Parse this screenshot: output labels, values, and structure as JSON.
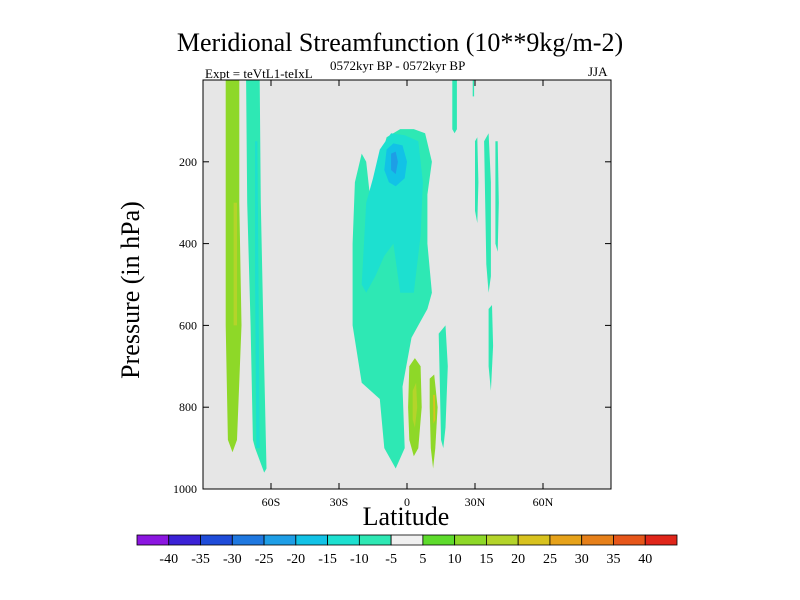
{
  "chart_data": {
    "type": "heatmap",
    "title": "Meridional Streamfunction (10**9kg/m-2)",
    "left_subtitle": "Expt = teVtL1-teIxL",
    "center_subtitle": "0572kyr BP - 0572kyr BP",
    "right_subtitle": "JJA",
    "xlabel": "Latitude",
    "ylabel": "Pressure (in hPa)",
    "x_range": [
      -90,
      90
    ],
    "y_range": [
      0,
      1000
    ],
    "y_reversed": true,
    "x_ticks": [
      {
        "value": -60,
        "label": "60S"
      },
      {
        "value": -30,
        "label": "30S"
      },
      {
        "value": 0,
        "label": "0"
      },
      {
        "value": 30,
        "label": "30N"
      },
      {
        "value": 60,
        "label": "60N"
      }
    ],
    "y_ticks": [
      {
        "value": 200,
        "label": "200"
      },
      {
        "value": 400,
        "label": "400"
      },
      {
        "value": 600,
        "label": "600"
      },
      {
        "value": 800,
        "label": "800"
      },
      {
        "value": 1000,
        "label": "1000"
      }
    ],
    "background_color": "#e6e6e6",
    "colorbar": {
      "levels": [
        "-40",
        "-35",
        "-30",
        "-25",
        "-20",
        "-15",
        "-10",
        "-5",
        "5",
        "10",
        "15",
        "20",
        "25",
        "30",
        "35",
        "40"
      ],
      "colors": [
        "#8b16e0",
        "#3b22d6",
        "#1f4cd9",
        "#1f78e0",
        "#1e9ee6",
        "#12c2e6",
        "#1de0d0",
        "#2ee8b4",
        "#f0f0f0",
        "#5edb2c",
        "#8ed828",
        "#b4d42a",
        "#d8c21e",
        "#e6a21a",
        "#e6801a",
        "#e6561a",
        "#e0261a"
      ]
    },
    "contour_regions": [
      {
        "name": "sh-positive-band",
        "value": 10,
        "points": [
          [
            -80,
            0
          ],
          [
            -74,
            0
          ],
          [
            -74,
            300
          ],
          [
            -73,
            600
          ],
          [
            -75,
            880
          ],
          [
            -77,
            910
          ],
          [
            -79,
            880
          ],
          [
            -80,
            600
          ]
        ]
      },
      {
        "name": "sh-positive-core",
        "value": 15,
        "points": [
          [
            -76.5,
            300
          ],
          [
            -75,
            300
          ],
          [
            -75,
            600
          ],
          [
            -76.5,
            600
          ]
        ]
      },
      {
        "name": "sh-negative-band-outer",
        "value": -10,
        "points": [
          [
            -71,
            0
          ],
          [
            -65,
            0
          ],
          [
            -64.5,
            300
          ],
          [
            -63,
            700
          ],
          [
            -62,
            950
          ],
          [
            -63,
            960
          ],
          [
            -67,
            900
          ],
          [
            -68,
            880
          ],
          [
            -69,
            600
          ],
          [
            -70.5,
            300
          ]
        ]
      },
      {
        "name": "sh-negative-band-inner",
        "value": -15,
        "points": [
          [
            -67,
            150
          ],
          [
            -66,
            150
          ],
          [
            -65.5,
            500
          ],
          [
            -65,
            900
          ],
          [
            -66.5,
            900
          ],
          [
            -67,
            500
          ]
        ]
      },
      {
        "name": "tropical-negative-outer",
        "value": -10,
        "points": [
          [
            -14,
            380
          ],
          [
            -12,
            200
          ],
          [
            -9,
            140
          ],
          [
            -3,
            120
          ],
          [
            3,
            120
          ],
          [
            8,
            130
          ],
          [
            11,
            200
          ],
          [
            9,
            280
          ],
          [
            9,
            400
          ],
          [
            11,
            520
          ],
          [
            9,
            560
          ],
          [
            5,
            600
          ],
          [
            2,
            630
          ],
          [
            -2,
            750
          ],
          [
            -1,
            900
          ],
          [
            -5,
            950
          ],
          [
            -10,
            900
          ],
          [
            -12,
            780
          ],
          [
            -20,
            740
          ],
          [
            -24,
            600
          ],
          [
            -24,
            400
          ],
          [
            -23,
            250
          ],
          [
            -20,
            180
          ],
          [
            -18,
            200
          ],
          [
            -16,
            300
          ]
        ]
      },
      {
        "name": "tropical-negative-middle",
        "value": -15,
        "points": [
          [
            -12,
            170
          ],
          [
            -7,
            130
          ],
          [
            -1,
            135
          ],
          [
            5,
            150
          ],
          [
            7,
            250
          ],
          [
            6,
            380
          ],
          [
            3,
            520
          ],
          [
            -3,
            520
          ],
          [
            -6,
            400
          ],
          [
            -10,
            430
          ],
          [
            -14,
            480
          ],
          [
            -18,
            520
          ],
          [
            -20,
            500
          ],
          [
            -18,
            300
          ],
          [
            -15,
            240
          ]
        ]
      },
      {
        "name": "tropical-negative-inner",
        "value": -20,
        "points": [
          [
            -9,
            170
          ],
          [
            -6,
            155
          ],
          [
            -2,
            160
          ],
          [
            0,
            200
          ],
          [
            -1,
            240
          ],
          [
            -5,
            260
          ],
          [
            -8,
            250
          ],
          [
            -10,
            220
          ]
        ]
      },
      {
        "name": "tropical-negative-core",
        "value": -25,
        "points": [
          [
            -7,
            180
          ],
          [
            -5,
            175
          ],
          [
            -4,
            200
          ],
          [
            -5,
            230
          ],
          [
            -7,
            220
          ]
        ]
      },
      {
        "name": "nh-positive-lobe-west",
        "value": 10,
        "points": [
          [
            1,
            700
          ],
          [
            3.5,
            680
          ],
          [
            6,
            700
          ],
          [
            6.5,
            800
          ],
          [
            5,
            900
          ],
          [
            3,
            920
          ],
          [
            1,
            880
          ],
          [
            0.5,
            800
          ]
        ]
      },
      {
        "name": "nh-positive-lobe-west-core",
        "value": 15,
        "points": [
          [
            2.5,
            760
          ],
          [
            4,
            740
          ],
          [
            4.5,
            800
          ],
          [
            3.5,
            850
          ],
          [
            2.5,
            830
          ]
        ]
      },
      {
        "name": "nh-positive-lobe-east",
        "value": 10,
        "points": [
          [
            10,
            730
          ],
          [
            12,
            720
          ],
          [
            13.5,
            800
          ],
          [
            12.5,
            900
          ],
          [
            11.5,
            950
          ],
          [
            10.5,
            900
          ],
          [
            10,
            800
          ]
        ]
      },
      {
        "name": "nh-positive-lobe-east-core",
        "value": 20,
        "points": [
          [
            11.5,
            770
          ],
          [
            12.3,
            770
          ],
          [
            12.5,
            830
          ],
          [
            11.7,
            840
          ]
        ]
      },
      {
        "name": "nh-negative-lobe-lower",
        "value": -10,
        "points": [
          [
            14,
            620
          ],
          [
            17,
            600
          ],
          [
            18,
            700
          ],
          [
            17,
            850
          ],
          [
            16,
            900
          ],
          [
            15,
            880
          ],
          [
            14.5,
            750
          ]
        ]
      },
      {
        "name": "nh-negative-strip-top",
        "value": -10,
        "points": [
          [
            20,
            0
          ],
          [
            22,
            0
          ],
          [
            22,
            120
          ],
          [
            21,
            130
          ],
          [
            20,
            120
          ]
        ]
      },
      {
        "name": "nh-negative-strip-mid",
        "value": -10,
        "points": [
          [
            34,
            150
          ],
          [
            36,
            130
          ],
          [
            37,
            250
          ],
          [
            37,
            480
          ],
          [
            36,
            520
          ],
          [
            35,
            450
          ],
          [
            34.5,
            300
          ]
        ]
      },
      {
        "name": "nh-negative-strip-small",
        "value": -10,
        "points": [
          [
            30,
            150
          ],
          [
            31,
            140
          ],
          [
            31.5,
            250
          ],
          [
            31,
            350
          ],
          [
            30,
            320
          ]
        ]
      },
      {
        "name": "nh-negative-strip-lower",
        "value": -10,
        "points": [
          [
            39,
            150
          ],
          [
            40,
            150
          ],
          [
            40.5,
            300
          ],
          [
            40,
            420
          ],
          [
            39,
            400
          ]
        ]
      },
      {
        "name": "nh-negative-strip-bottom",
        "value": -10,
        "points": [
          [
            36,
            560
          ],
          [
            37.5,
            550
          ],
          [
            38,
            650
          ],
          [
            37,
            760
          ],
          [
            36,
            700
          ]
        ]
      },
      {
        "name": "nh-negative-dot",
        "value": -10,
        "points": [
          [
            29,
            0
          ],
          [
            29.6,
            0
          ],
          [
            29.6,
            40
          ],
          [
            29,
            40
          ]
        ]
      }
    ]
  }
}
